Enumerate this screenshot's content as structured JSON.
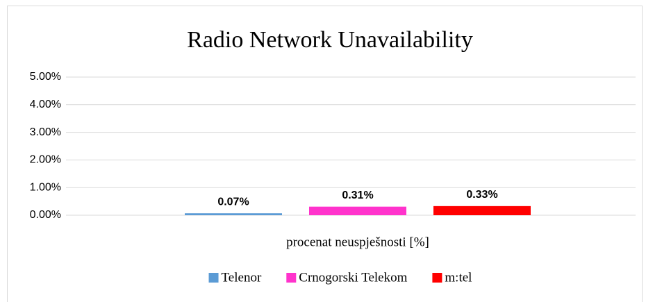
{
  "chart_data": {
    "type": "bar",
    "title": "Radio Network Unavailability",
    "categories": [
      "procenat neuspješnosti [%]"
    ],
    "series": [
      {
        "name": "Telenor",
        "color": "#5b9bd5",
        "values": [
          0.07
        ],
        "value_labels": [
          "0.07%"
        ]
      },
      {
        "name": "Crnogorski Telekom",
        "color": "#ff33cc",
        "values": [
          0.31
        ],
        "value_labels": [
          "0.31%"
        ]
      },
      {
        "name": "m:tel",
        "color": "#ff0000",
        "values": [
          0.33
        ],
        "value_labels": [
          "0.33%"
        ]
      }
    ],
    "ylim": [
      0,
      5
    ],
    "yticks": [
      {
        "value": 0,
        "label": "0.00%"
      },
      {
        "value": 1,
        "label": "1.00%"
      },
      {
        "value": 2,
        "label": "2.00%"
      },
      {
        "value": 3,
        "label": "3.00%"
      },
      {
        "value": 4,
        "label": "4.00%"
      },
      {
        "value": 5,
        "label": "5.00%"
      }
    ],
    "grid": true,
    "legend": "bottom"
  }
}
